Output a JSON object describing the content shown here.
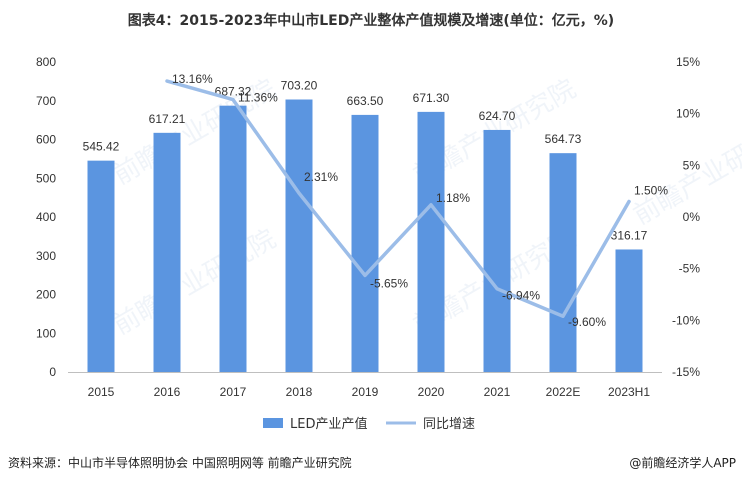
{
  "title": "图表4：2015-2023年中山市LED产业整体产值规模及增速(单位：亿元，%)",
  "chart_data": {
    "type": "bar",
    "categories": [
      "2015",
      "2016",
      "2017",
      "2018",
      "2019",
      "2020",
      "2021",
      "2022E",
      "2023H1"
    ],
    "series": [
      {
        "name": "LED产业产值",
        "type": "bar",
        "axis": "left",
        "values": [
          545.42,
          617.21,
          687.32,
          703.2,
          663.5,
          671.3,
          624.7,
          564.73,
          316.17
        ],
        "labels": [
          "545.42",
          "617.21",
          "687.32",
          "703.20",
          "663.50",
          "671.30",
          "624.70",
          "564.73",
          "316.17"
        ]
      },
      {
        "name": "同比增速",
        "type": "line",
        "axis": "right",
        "values": [
          null,
          13.16,
          11.36,
          2.31,
          -5.65,
          1.18,
          -6.94,
          -9.6,
          1.5
        ],
        "labels": [
          "",
          "13.16%",
          "11.36%",
          "2.31%",
          "-5.65%",
          "1.18%",
          "-6.94%",
          "-9.60%",
          "1.50%"
        ]
      }
    ],
    "y_left": {
      "ylim": [
        0,
        800
      ],
      "ticks": [
        0,
        100,
        200,
        300,
        400,
        500,
        600,
        700,
        800
      ]
    },
    "y_right": {
      "ylim": [
        -15,
        15
      ],
      "ticks": [
        "-15%",
        "-10%",
        "-5%",
        "0%",
        "5%",
        "10%",
        "15%"
      ],
      "tick_values": [
        -15,
        -10,
        -5,
        0,
        5,
        10,
        15
      ]
    },
    "grid": false,
    "legend_position": "bottom"
  },
  "colors": {
    "bar": "#5b95e0",
    "line": "#9cbde8",
    "watermark": "#4a7fc1"
  },
  "watermark": "前瞻产业研究院",
  "source": "资料来源：中山市半导体照明协会 中国照明网等 前瞻产业研究院",
  "brand": "@前瞻经济学人APP"
}
